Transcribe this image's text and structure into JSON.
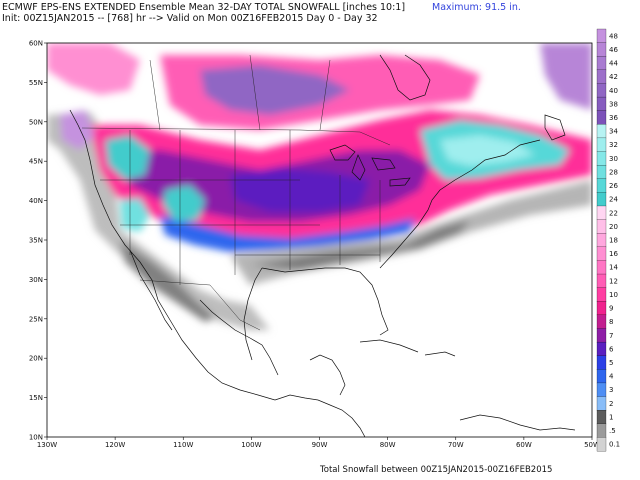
{
  "header": {
    "title": "ECMWF EPS-ENS EXTENDED Ensemble Mean 32-DAY TOTAL SNOWFALL [inches 10:1]",
    "subtitle": "Init: 00Z15JAN2015 -- [768] hr --> Valid on Mon 00Z16FEB2015  Day 0 - Day 32",
    "maximum": "Maximum:  91.5 in."
  },
  "footer": "Total Snowfall between 00Z15JAN2015-00Z16FEB2015",
  "axes": {
    "lon_labels": [
      "130W",
      "120W",
      "110W",
      "100W",
      "90W",
      "80W",
      "70W",
      "60W",
      "50W"
    ],
    "lat_labels": [
      "60N",
      "55N",
      "50N",
      "45N",
      "40N",
      "35N",
      "30N",
      "25N",
      "20N",
      "15N",
      "10N"
    ]
  },
  "colorbar": {
    "levels": [
      {
        "label": "48",
        "color": "#c592df"
      },
      {
        "label": "46",
        "color": "#b785d7"
      },
      {
        "label": "44",
        "color": "#a97bd1"
      },
      {
        "label": "42",
        "color": "#9d70ca"
      },
      {
        "label": "40",
        "color": "#9066c4"
      },
      {
        "label": "38",
        "color": "#865cbf"
      },
      {
        "label": "36",
        "color": "#7c52b9"
      },
      {
        "label": "34",
        "color": "#b7f3f3"
      },
      {
        "label": "32",
        "color": "#9feeee"
      },
      {
        "label": "30",
        "color": "#85e8e8"
      },
      {
        "label": "28",
        "color": "#6fe0e0"
      },
      {
        "label": "26",
        "color": "#57d8d8"
      },
      {
        "label": "24",
        "color": "#43cccc"
      },
      {
        "label": "22",
        "color": "#ffd6f2"
      },
      {
        "label": "20",
        "color": "#ffbfe8"
      },
      {
        "label": "18",
        "color": "#ffa7de"
      },
      {
        "label": "16",
        "color": "#ff8fd2"
      },
      {
        "label": "14",
        "color": "#ff76c4"
      },
      {
        "label": "12",
        "color": "#ff5db5"
      },
      {
        "label": "10",
        "color": "#ff3ea2"
      },
      {
        "label": "9",
        "color": "#f0238e"
      },
      {
        "label": "8",
        "color": "#c21e8f"
      },
      {
        "label": "7",
        "color": "#8e1ea6"
      },
      {
        "label": "6",
        "color": "#5a1fc0"
      },
      {
        "label": "5",
        "color": "#2b40e6"
      },
      {
        "label": "4",
        "color": "#2f66ee"
      },
      {
        "label": "3",
        "color": "#4e8ef4"
      },
      {
        "label": "2",
        "color": "#89bdf8"
      },
      {
        "label": "1",
        "color": "#5c5c5c"
      },
      {
        "label": ".5",
        "color": "#9a9a9a"
      },
      {
        "label": "0.1",
        "color": "#d2d2d2"
      }
    ]
  }
}
